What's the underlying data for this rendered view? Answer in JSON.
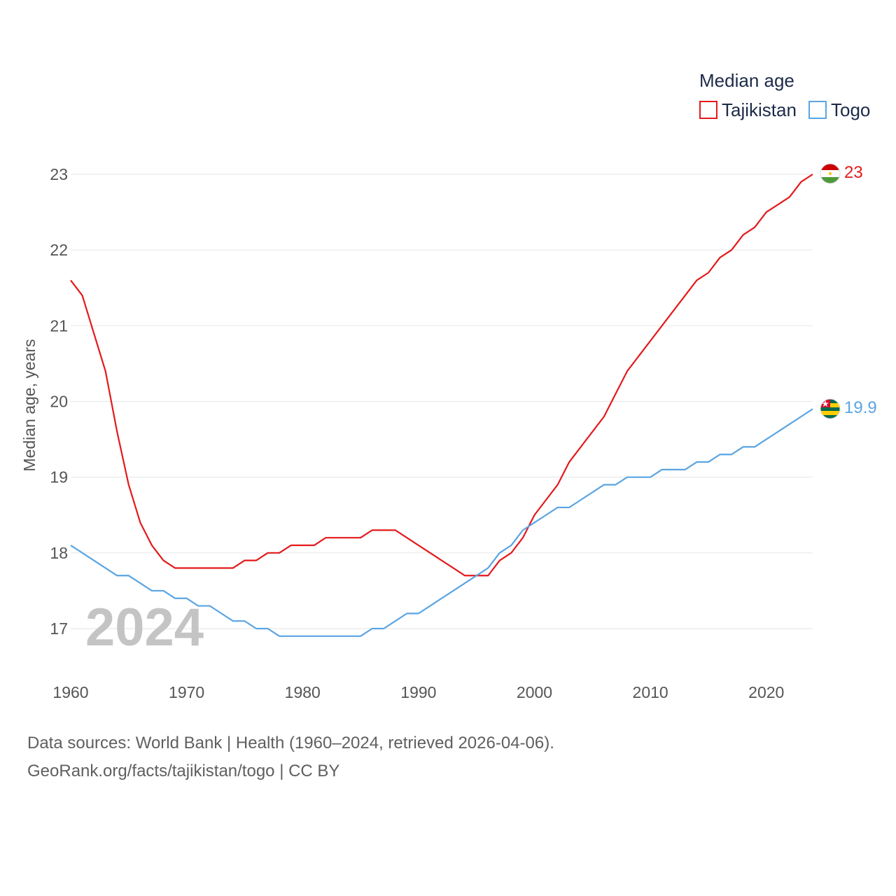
{
  "chart_data": {
    "type": "line",
    "ylabel": "Median age, years",
    "xlim": [
      1960,
      2024
    ],
    "ylim": [
      16.5,
      23.5
    ],
    "x_ticks": [
      1960,
      1970,
      1980,
      1990,
      2000,
      2010,
      2020
    ],
    "y_ticks": [
      17,
      18,
      19,
      20,
      21,
      22,
      23
    ],
    "grid": true,
    "legend": {
      "title": "Median age",
      "position": "top-right"
    },
    "year_label": "2024",
    "x": [
      1960,
      1961,
      1962,
      1963,
      1964,
      1965,
      1966,
      1967,
      1968,
      1969,
      1970,
      1971,
      1972,
      1973,
      1974,
      1975,
      1976,
      1977,
      1978,
      1979,
      1980,
      1981,
      1982,
      1983,
      1984,
      1985,
      1986,
      1987,
      1988,
      1989,
      1990,
      1991,
      1992,
      1993,
      1994,
      1995,
      1996,
      1997,
      1998,
      1999,
      2000,
      2001,
      2002,
      2003,
      2004,
      2005,
      2006,
      2007,
      2008,
      2009,
      2010,
      2011,
      2012,
      2013,
      2014,
      2015,
      2016,
      2017,
      2018,
      2019,
      2020,
      2021,
      2022,
      2023,
      2024
    ],
    "series": [
      {
        "name": "Tajikistan",
        "color": "#e31a1c",
        "end_label": "23",
        "values": [
          21.6,
          21.4,
          20.9,
          20.4,
          19.6,
          18.9,
          18.4,
          18.1,
          17.9,
          17.8,
          17.8,
          17.8,
          17.8,
          17.8,
          17.8,
          17.9,
          17.9,
          18.0,
          18.0,
          18.1,
          18.1,
          18.1,
          18.2,
          18.2,
          18.2,
          18.2,
          18.3,
          18.3,
          18.3,
          18.2,
          18.1,
          18.0,
          17.9,
          17.8,
          17.7,
          17.7,
          17.7,
          17.9,
          18.0,
          18.2,
          18.5,
          18.7,
          18.9,
          19.2,
          19.4,
          19.6,
          19.8,
          20.1,
          20.4,
          20.6,
          20.8,
          21.0,
          21.2,
          21.4,
          21.6,
          21.7,
          21.9,
          22.0,
          22.2,
          22.3,
          22.5,
          22.6,
          22.7,
          22.9,
          23.0
        ]
      },
      {
        "name": "Togo",
        "color": "#5aa5e3",
        "end_label": "19.9",
        "values": [
          18.1,
          18.0,
          17.9,
          17.8,
          17.7,
          17.7,
          17.6,
          17.5,
          17.5,
          17.4,
          17.4,
          17.3,
          17.3,
          17.2,
          17.1,
          17.1,
          17.0,
          17.0,
          16.9,
          16.9,
          16.9,
          16.9,
          16.9,
          16.9,
          16.9,
          16.9,
          17.0,
          17.0,
          17.1,
          17.2,
          17.2,
          17.3,
          17.4,
          17.5,
          17.6,
          17.7,
          17.8,
          18.0,
          18.1,
          18.3,
          18.4,
          18.5,
          18.6,
          18.6,
          18.7,
          18.8,
          18.9,
          18.9,
          19.0,
          19.0,
          19.0,
          19.1,
          19.1,
          19.1,
          19.2,
          19.2,
          19.3,
          19.3,
          19.4,
          19.4,
          19.5,
          19.6,
          19.7,
          19.8,
          19.9
        ]
      }
    ]
  },
  "source": {
    "line1": "Data sources: World Bank | Health (1960–2024, retrieved 2026-04-06).",
    "line2": "GeoRank.org/facts/tajikistan/togo | CC BY"
  }
}
